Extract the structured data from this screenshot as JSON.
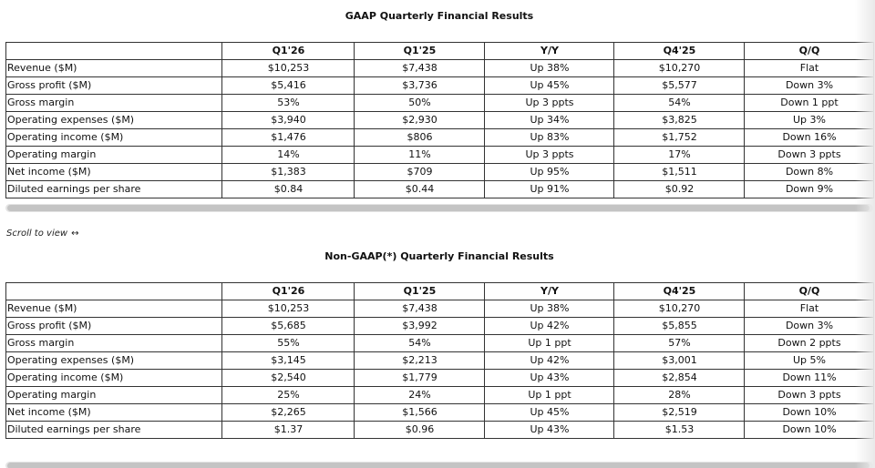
{
  "gaap": {
    "title": "GAAP Quarterly Financial Results",
    "headers": [
      "",
      "Q1'26",
      "Q1'25",
      "Y/Y",
      "Q4'25",
      "Q/Q"
    ],
    "rows": [
      [
        "Revenue ($M)",
        "$10,253",
        "$7,438",
        "Up 38%",
        "$10,270",
        "Flat"
      ],
      [
        "Gross profit ($M)",
        "$5,416",
        "$3,736",
        "Up 45%",
        "$5,577",
        "Down 3%"
      ],
      [
        "Gross margin",
        "53%",
        "50%",
        "Up 3 ppts",
        "54%",
        "Down 1 ppt"
      ],
      [
        "Operating expenses ($M)",
        "$3,940",
        "$2,930",
        "Up 34%",
        "$3,825",
        "Up 3%"
      ],
      [
        "Operating income ($M)",
        "$1,476",
        "$806",
        "Up 83%",
        "$1,752",
        "Down 16%"
      ],
      [
        "Operating margin",
        "14%",
        "11%",
        "Up 3 ppts",
        "17%",
        "Down 3 ppts"
      ],
      [
        "Net income ($M)",
        "$1,383",
        "$709",
        "Up 95%",
        "$1,511",
        "Down 8%"
      ],
      [
        "Diluted earnings per share",
        "$0.84",
        "$0.44",
        "Up 91%",
        "$0.92",
        "Down 9%"
      ]
    ]
  },
  "scroll_hint": {
    "text": "Scroll to view",
    "arrow": "↔"
  },
  "non_gaap": {
    "title": "Non-GAAP(*) Quarterly Financial Results",
    "headers": [
      "",
      "Q1'26",
      "Q1'25",
      "Y/Y",
      "Q4'25",
      "Q/Q"
    ],
    "rows": [
      [
        "Revenue ($M)",
        "$10,253",
        "$7,438",
        "Up 38%",
        "$10,270",
        "Flat"
      ],
      [
        "Gross profit ($M)",
        "$5,685",
        "$3,992",
        "Up 42%",
        "$5,855",
        "Down 3%"
      ],
      [
        "Gross margin",
        "55%",
        "54%",
        "Up 1 ppt",
        "57%",
        "Down 2 ppts"
      ],
      [
        "Operating expenses ($M)",
        "$3,145",
        "$2,213",
        "Up 42%",
        "$3,001",
        "Up 5%"
      ],
      [
        "Operating income ($M)",
        "$2,540",
        "$1,779",
        "Up 43%",
        "$2,854",
        "Down 11%"
      ],
      [
        "Operating margin",
        "25%",
        "24%",
        "Up 1 ppt",
        "28%",
        "Down 3 ppts"
      ],
      [
        "Net income ($M)",
        "$2,265",
        "$1,566",
        "Up 45%",
        "$2,519",
        "Down 10%"
      ],
      [
        "Diluted earnings per share",
        "$1.37",
        "$0.96",
        "Up 43%",
        "$1.53",
        "Down 10%"
      ]
    ]
  }
}
